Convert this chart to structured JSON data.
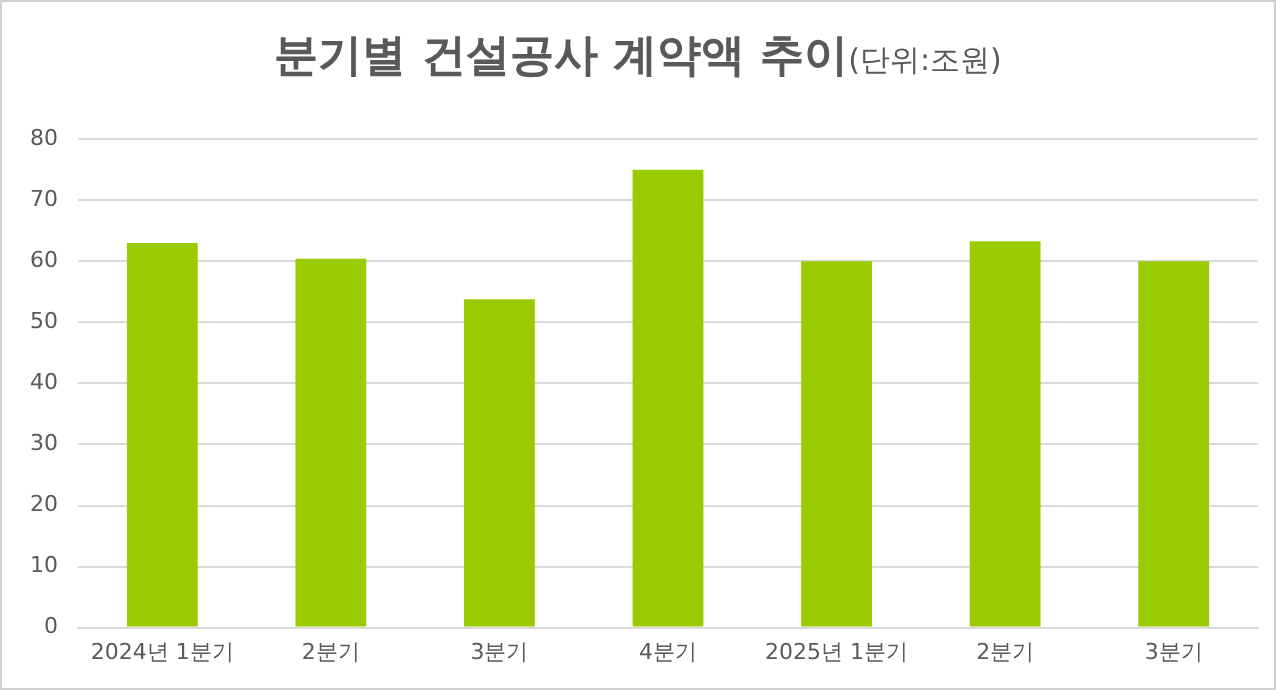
{
  "chart_data": {
    "type": "bar",
    "title": "분기별 건설공사 계약액 추이",
    "subtitle": "(단위:조원)",
    "categories": [
      "2024년 1분기",
      "2분기",
      "3분기",
      "4분기",
      "2025년 1분기",
      "2분기",
      "3분기"
    ],
    "values": [
      63.0,
      60.4,
      53.8,
      75.0,
      60.0,
      63.3,
      60.0
    ],
    "color": "#99cc00",
    "ylim": [
      0,
      80
    ],
    "yticks": [
      0,
      10,
      20,
      30,
      40,
      50,
      60,
      70,
      80
    ],
    "grid": "y",
    "legend": false
  }
}
